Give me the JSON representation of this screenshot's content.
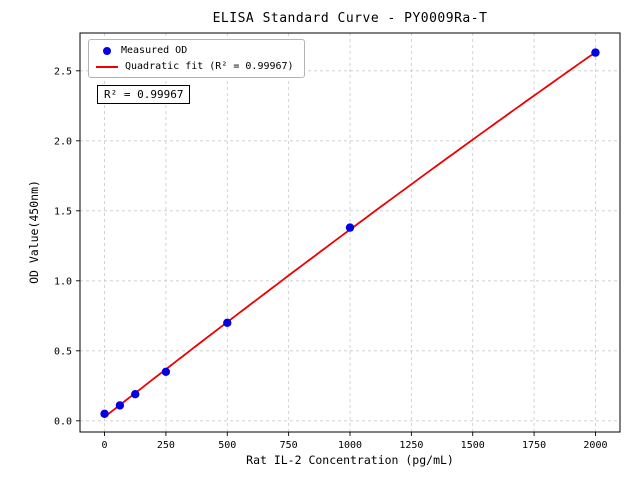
{
  "chart_data": {
    "type": "scatter",
    "title": "ELISA Standard Curve - PY0009Ra-T",
    "xlabel": "Rat IL-2 Concentration (pg/mL)",
    "ylabel": "OD Value(450nm)",
    "x": [
      0,
      62.5,
      125,
      250,
      500,
      1000,
      2000
    ],
    "y": [
      0.05,
      0.11,
      0.19,
      0.35,
      0.7,
      1.38,
      2.63
    ],
    "series": [
      {
        "name": "Measured OD",
        "kind": "scatter",
        "color": "#0000e0"
      },
      {
        "name": "Quadratic fit (R² = 0.99967)",
        "kind": "quadratic-fit-line",
        "color": "#ee0000"
      }
    ],
    "xticks": [
      0,
      250,
      500,
      750,
      1000,
      1250,
      1500,
      1750,
      2000
    ],
    "yticks": [
      0.0,
      0.5,
      1.0,
      1.5,
      2.0,
      2.5
    ],
    "xlim": [
      -100,
      2100
    ],
    "ylim": [
      -0.08,
      2.77
    ],
    "grid": true,
    "grid_style": "dashed",
    "grid_color": "#c9c9c9",
    "axis_color": "#000000",
    "legend_position": "upper left",
    "annotation": "R² = 0.99967"
  }
}
